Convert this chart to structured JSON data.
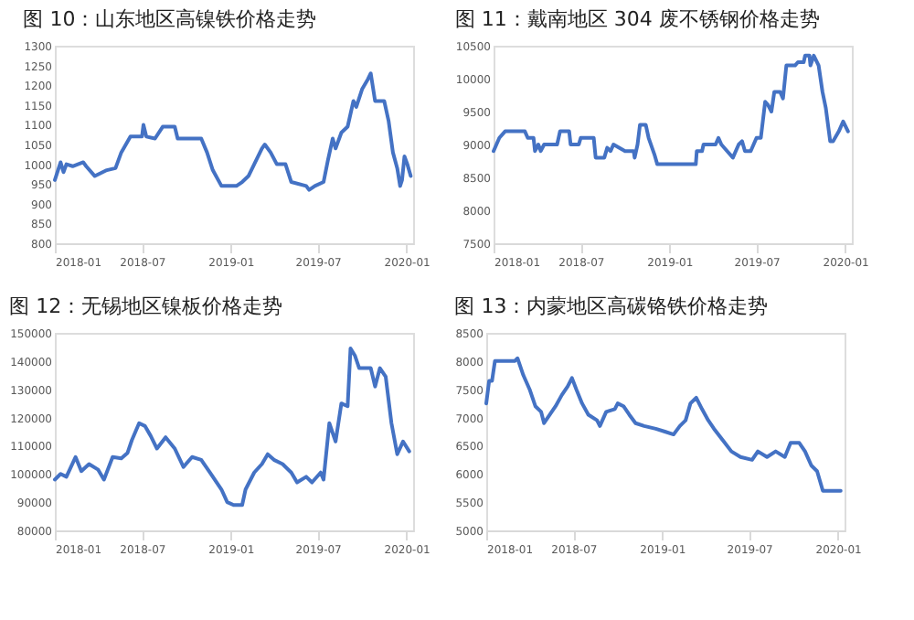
{
  "chart_data": [
    {
      "type": "line",
      "title": "图 10：山东地区高镍铁价格走势",
      "color": "#4472c4",
      "grid": false,
      "marker": "none",
      "line_style": "solid",
      "x": [
        "2018-01-01",
        "2018-01-13",
        "2018-01-19",
        "2018-01-25",
        "2018-02-07",
        "2018-03-01",
        "2018-03-07",
        "2018-03-25",
        "2018-04-19",
        "2018-05-07",
        "2018-05-19",
        "2018-06-07",
        "2018-07-01",
        "2018-07-04",
        "2018-07-10",
        "2018-07-28",
        "2018-08-13",
        "2018-09-07",
        "2018-09-13",
        "2018-11-01",
        "2018-11-13",
        "2018-11-25",
        "2018-12-13",
        "2019-01-13",
        "2019-01-25",
        "2019-02-07",
        "2019-02-19",
        "2019-03-07",
        "2019-03-13",
        "2019-03-25",
        "2019-04-07",
        "2019-04-25",
        "2019-05-07",
        "2019-06-07",
        "2019-06-13",
        "2019-06-25",
        "2019-07-13",
        "2019-07-22",
        "2019-08-01",
        "2019-08-07",
        "2019-08-19",
        "2019-09-01",
        "2019-09-13",
        "2019-09-19",
        "2019-10-01",
        "2019-10-13",
        "2019-10-19",
        "2019-10-28",
        "2019-11-16",
        "2019-11-25",
        "2019-12-04",
        "2019-12-13",
        "2019-12-19",
        "2019-12-23",
        "2019-12-28",
        "2020-01-03",
        "2020-01-10"
      ],
      "values": [
        960,
        1005,
        980,
        1000,
        995,
        1005,
        995,
        970,
        985,
        990,
        1030,
        1070,
        1070,
        1100,
        1070,
        1065,
        1095,
        1095,
        1065,
        1065,
        1030,
        985,
        945,
        945,
        955,
        970,
        1000,
        1040,
        1050,
        1030,
        1000,
        1000,
        955,
        945,
        935,
        945,
        955,
        1010,
        1065,
        1040,
        1080,
        1095,
        1160,
        1145,
        1190,
        1215,
        1230,
        1160,
        1160,
        1110,
        1030,
        990,
        945,
        960,
        1020,
        1000,
        970
      ],
      "ylim": [
        800,
        1300
      ],
      "yticks": [
        800,
        850,
        900,
        950,
        1000,
        1050,
        1100,
        1150,
        1200,
        1250,
        1300
      ],
      "xlim": [
        "2018-01-01",
        "2020-01-15"
      ],
      "xticks": [
        "2018-01",
        "2018-07",
        "2019-01",
        "2019-07",
        "2020-01"
      ]
    },
    {
      "type": "line",
      "title": "图 11：戴南地区 304 废不锈钢价格走势",
      "color": "#4472c4",
      "grid": false,
      "marker": "none",
      "line_style": "solid",
      "x": [
        "2018-01-01",
        "2018-01-07",
        "2018-01-13",
        "2018-01-25",
        "2018-03-07",
        "2018-03-13",
        "2018-03-25",
        "2018-03-28",
        "2018-04-04",
        "2018-04-09",
        "2018-04-16",
        "2018-05-13",
        "2018-05-19",
        "2018-06-07",
        "2018-06-10",
        "2018-06-27",
        "2018-07-01",
        "2018-07-28",
        "2018-08-01",
        "2018-08-19",
        "2018-08-25",
        "2018-09-01",
        "2018-09-07",
        "2018-10-01",
        "2018-10-19",
        "2018-10-21",
        "2018-10-27",
        "2018-11-01",
        "2018-11-13",
        "2018-11-19",
        "2018-12-01",
        "2018-12-07",
        "2019-02-25",
        "2019-02-27",
        "2019-03-10",
        "2019-03-13",
        "2019-04-07",
        "2019-04-13",
        "2019-04-19",
        "2019-05-01",
        "2019-05-13",
        "2019-05-25",
        "2019-06-01",
        "2019-06-07",
        "2019-06-19",
        "2019-06-25",
        "2019-07-01",
        "2019-07-10",
        "2019-07-19",
        "2019-07-25",
        "2019-08-01",
        "2019-08-07",
        "2019-08-19",
        "2019-08-25",
        "2019-09-01",
        "2019-09-19",
        "2019-09-25",
        "2019-10-07",
        "2019-10-10",
        "2019-10-19",
        "2019-10-21",
        "2019-10-28",
        "2019-11-07",
        "2019-11-15",
        "2019-11-22",
        "2019-12-01",
        "2019-12-07",
        "2019-12-19",
        "2019-12-28",
        "2020-01-07"
      ],
      "values": [
        8900,
        9000,
        9100,
        9200,
        9200,
        9100,
        9100,
        8900,
        9000,
        8900,
        9000,
        9000,
        9200,
        9200,
        9000,
        9000,
        9100,
        9100,
        8800,
        8800,
        8950,
        8900,
        9000,
        8900,
        8900,
        8800,
        9000,
        9300,
        9300,
        9100,
        8850,
        8700,
        8700,
        8900,
        8900,
        9000,
        9000,
        9100,
        9000,
        8900,
        8800,
        9000,
        9050,
        8900,
        8900,
        9000,
        9100,
        9100,
        9650,
        9600,
        9500,
        9800,
        9800,
        9700,
        10200,
        10200,
        10250,
        10250,
        10350,
        10350,
        10200,
        10350,
        10200,
        9800,
        9550,
        9050,
        9050,
        9200,
        9350,
        9200
      ],
      "ylim": [
        7500,
        10500
      ],
      "yticks": [
        7500,
        8000,
        8500,
        9000,
        9500,
        10000,
        10500
      ],
      "xlim": [
        "2018-01-01",
        "2020-01-15"
      ],
      "xticks": [
        "2018-01",
        "2018-07",
        "2019-01",
        "2019-07",
        "2020-01"
      ]
    },
    {
      "type": "line",
      "title": "图 12：无锡地区镍板价格走势",
      "color": "#4472c4",
      "grid": false,
      "marker": "none",
      "line_style": "solid",
      "x": [
        "2018-01-01",
        "2018-01-13",
        "2018-01-25",
        "2018-02-13",
        "2018-02-25",
        "2018-03-13",
        "2018-04-01",
        "2018-04-13",
        "2018-05-01",
        "2018-05-19",
        "2018-06-01",
        "2018-06-10",
        "2018-06-25",
        "2018-07-07",
        "2018-07-19",
        "2018-08-01",
        "2018-08-19",
        "2018-09-07",
        "2018-09-25",
        "2018-10-13",
        "2018-11-01",
        "2018-11-19",
        "2018-12-13",
        "2018-12-25",
        "2019-01-07",
        "2019-01-25",
        "2019-02-01",
        "2019-02-19",
        "2019-03-07",
        "2019-03-19",
        "2019-04-01",
        "2019-04-19",
        "2019-05-07",
        "2019-05-19",
        "2019-06-07",
        "2019-06-19",
        "2019-07-07",
        "2019-07-13",
        "2019-07-25",
        "2019-08-07",
        "2019-08-19",
        "2019-09-01",
        "2019-09-07",
        "2019-09-16",
        "2019-09-25",
        "2019-10-19",
        "2019-10-28",
        "2019-11-07",
        "2019-11-19",
        "2019-12-01",
        "2019-12-13",
        "2019-12-25",
        "2020-01-07"
      ],
      "values": [
        98000,
        100000,
        99000,
        106000,
        101000,
        103500,
        101500,
        98000,
        106000,
        105500,
        107500,
        112000,
        118000,
        117000,
        113500,
        109000,
        113000,
        109000,
        102500,
        106000,
        105000,
        100500,
        94500,
        90000,
        89000,
        89000,
        94500,
        100500,
        103500,
        107000,
        105000,
        103500,
        100500,
        97000,
        99000,
        97000,
        100500,
        98000,
        118000,
        111500,
        125000,
        124000,
        144500,
        142000,
        137500,
        137500,
        131000,
        137500,
        134500,
        118000,
        107000,
        111500,
        108000
      ],
      "ylim": [
        80000,
        150000
      ],
      "yticks": [
        80000,
        90000,
        100000,
        110000,
        120000,
        130000,
        140000,
        150000
      ],
      "xlim": [
        "2018-01-01",
        "2020-01-15"
      ],
      "xticks": [
        "2018-01",
        "2018-07",
        "2019-01",
        "2019-07",
        "2020-01"
      ]
    },
    {
      "type": "line",
      "title": "图 13：内蒙地区高碳铬铁价格走势",
      "color": "#4472c4",
      "grid": false,
      "marker": "none",
      "line_style": "solid",
      "x": [
        "2018-01-01",
        "2018-01-07",
        "2018-01-13",
        "2018-01-19",
        "2018-03-01",
        "2018-03-07",
        "2018-03-19",
        "2018-04-01",
        "2018-04-13",
        "2018-04-25",
        "2018-05-01",
        "2018-05-13",
        "2018-05-25",
        "2018-06-07",
        "2018-06-19",
        "2018-06-28",
        "2018-07-07",
        "2018-07-19",
        "2018-08-01",
        "2018-08-19",
        "2018-08-25",
        "2018-09-07",
        "2018-09-25",
        "2018-10-01",
        "2018-10-13",
        "2018-10-25",
        "2018-11-07",
        "2018-11-25",
        "2018-12-19",
        "2019-01-07",
        "2019-01-25",
        "2019-02-07",
        "2019-02-19",
        "2019-03-01",
        "2019-03-13",
        "2019-03-25",
        "2019-04-07",
        "2019-04-19",
        "2019-05-07",
        "2019-05-25",
        "2019-06-13",
        "2019-07-07",
        "2019-07-19",
        "2019-08-07",
        "2019-08-25",
        "2019-09-13",
        "2019-09-25",
        "2019-10-13",
        "2019-10-25",
        "2019-11-07",
        "2019-11-19",
        "2019-12-01",
        "2020-01-07"
      ],
      "values": [
        7250,
        7650,
        7650,
        8000,
        8000,
        8050,
        7750,
        7500,
        7200,
        7100,
        6900,
        7050,
        7200,
        7400,
        7550,
        7700,
        7500,
        7250,
        7050,
        6950,
        6850,
        7100,
        7150,
        7250,
        7200,
        7050,
        6900,
        6850,
        6800,
        6750,
        6700,
        6850,
        6950,
        7250,
        7350,
        7150,
        6950,
        6800,
        6600,
        6400,
        6300,
        6250,
        6400,
        6300,
        6400,
        6300,
        6550,
        6550,
        6400,
        6150,
        6050,
        5700,
        5700
      ],
      "ylim": [
        5000,
        8500
      ],
      "yticks": [
        5000,
        5500,
        6000,
        6500,
        7000,
        7500,
        8000,
        8500
      ],
      "xlim": [
        "2018-01-01",
        "2020-01-15"
      ],
      "xticks": [
        "2018-01",
        "2018-07",
        "2019-01",
        "2019-07",
        "2020-01"
      ]
    }
  ]
}
